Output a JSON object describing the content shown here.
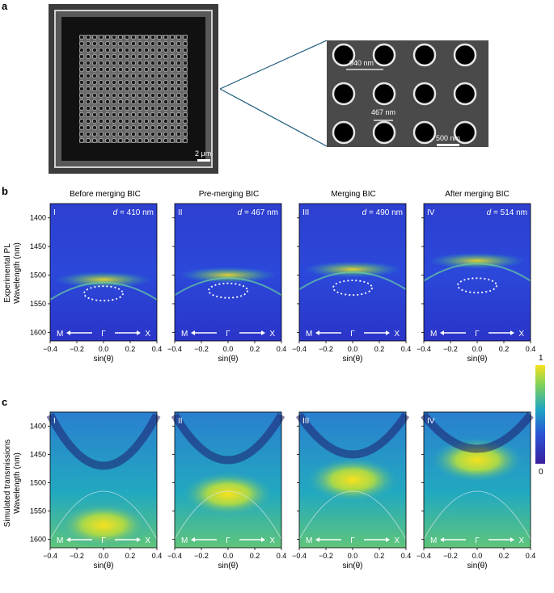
{
  "panels": {
    "a": "a",
    "b": "b",
    "c": "c"
  },
  "sem": {
    "scale_main": "2 μm",
    "scale_zoom": "500 nm",
    "period": "940 nm",
    "hole_d": "467 nm"
  },
  "row_b": {
    "ylabel_line1": "Experimental PL",
    "ylabel_line2": "Wavelength (nm)",
    "yticks": [
      "1400",
      "1450",
      "1500",
      "1550",
      "1600"
    ]
  },
  "row_c": {
    "ylabel_line1": "Simulated transmissions",
    "ylabel_line2": "Wavelength (nm)",
    "yticks": [
      "1400",
      "1450",
      "1500",
      "1550",
      "1600"
    ]
  },
  "xaxis": {
    "label": "sin(θ)",
    "ticks": [
      "−0.4",
      "−0.2",
      "0.0",
      "0.2",
      "0.4"
    ]
  },
  "direction": {
    "left": "M",
    "center": "Γ",
    "right": "X"
  },
  "columns": [
    {
      "title": "Before merging BIC",
      "roman": "I",
      "d_label": "d",
      "d_value": " = 410 nm"
    },
    {
      "title": "Pre-merging BIC",
      "roman": "II",
      "d_label": "d",
      "d_value": " = 467 nm"
    },
    {
      "title": "Merging BIC",
      "roman": "III",
      "d_label": "d",
      "d_value": " = 490 nm"
    },
    {
      "title": "After merging BIC",
      "roman": "IV",
      "d_label": "d",
      "d_value": " = 514 nm"
    }
  ],
  "colorbar": {
    "max": "1",
    "min": "0"
  },
  "colors": {
    "low": "#3a1f9e",
    "mid": "#1fa6c4",
    "high": "#f6e11e",
    "sem_bg": "#4a4a4a",
    "leader": "#1a5a7a"
  }
}
